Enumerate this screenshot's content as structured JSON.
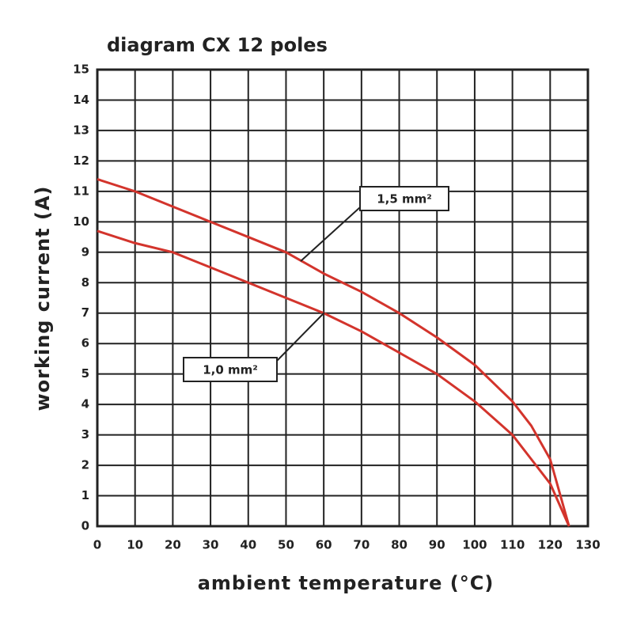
{
  "chart_data": {
    "type": "line",
    "title": "diagram CX 12 poles",
    "x_label": "ambient temperature (°C)",
    "y_label": "working current (A)",
    "x": [
      0,
      10,
      20,
      30,
      40,
      50,
      60,
      70,
      80,
      90,
      100,
      110,
      115,
      120,
      125
    ],
    "series": [
      {
        "name": "1,5 mm²",
        "color": "#d3342c",
        "values": [
          11.4,
          11,
          10.5,
          10,
          9.5,
          9,
          8.3,
          7.7,
          7,
          6.2,
          5.3,
          4.1,
          3.3,
          2.2,
          0
        ]
      },
      {
        "name": "1,0 mm²",
        "color": "#d3342c",
        "values": [
          9.7,
          9.3,
          9,
          8.5,
          8,
          7.5,
          7,
          6.4,
          5.7,
          5,
          4.1,
          3,
          2.2,
          1.4,
          0
        ]
      }
    ],
    "xlim": [
      0,
      130
    ],
    "xticks": [
      0,
      10,
      20,
      30,
      40,
      50,
      60,
      70,
      80,
      90,
      100,
      110,
      120,
      130
    ],
    "ylim": [
      0,
      15
    ],
    "yticks": [
      0,
      1,
      2,
      3,
      4,
      5,
      6,
      7,
      8,
      9,
      10,
      11,
      12,
      13,
      14,
      15
    ],
    "grid": true
  }
}
